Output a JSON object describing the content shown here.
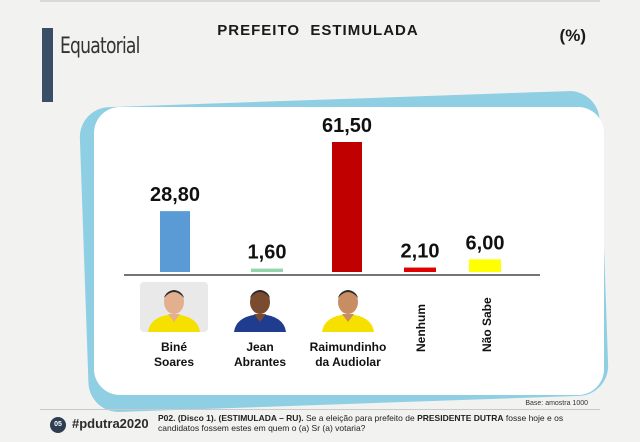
{
  "brand": "Equatorial",
  "unit": "(%)",
  "chart_data": {
    "type": "bar",
    "title": "PREFEITO  ESTIMULADA",
    "categories": [
      "Biné Soares",
      "Jean Abrantes",
      "Raimundinho da Audiolar",
      "Nenhum",
      "Não Sabe"
    ],
    "category_labels": [
      "Biné\nSoares",
      "Jean\nAbrantes",
      "Raimundinho\nda  Audiolar",
      "Nenhum",
      "Não Sabe"
    ],
    "values": [
      28.8,
      1.6,
      61.5,
      2.1,
      6.0
    ],
    "value_labels": [
      "28,80",
      "1,60",
      "61,50",
      "2,10",
      "6,00"
    ],
    "colors": [
      "#5b9bd5",
      "#92d5a8",
      "#c00000",
      "#e00000",
      "#ffff00"
    ],
    "ylim": [
      0,
      61.5
    ],
    "grid": false,
    "legend": "none"
  },
  "photos": [
    {
      "name": "Biné Soares",
      "icon": "candidate-photo-icon",
      "shirt": "#f5e000",
      "skin": "#e2b08e",
      "bg": "#e9e9e9"
    },
    {
      "name": "Jean Abrantes",
      "icon": "candidate-photo-icon",
      "shirt": "#1f3c8f",
      "skin": "#7a4b2e",
      "bg": "#ffffff"
    },
    {
      "name": "Raimundinho da Audiolar",
      "icon": "candidate-photo-icon",
      "shirt": "#f5e000",
      "skin": "#c88d62",
      "bg": "#ffffff"
    }
  ],
  "note": "Base: amostra 1000",
  "footer": {
    "page": "05",
    "hashtag": "#pdutra2020",
    "q_id": "P02. (Disco 1).",
    "q_type": "(ESTIMULADA – RU).",
    "q_text_1": "Se a eleição para prefeito de",
    "q_city": "PRESIDENTE DUTRA",
    "q_text_2": "fosse hoje e os candidatos fossem estes em quem o (a) Sr (a) votaria?"
  }
}
